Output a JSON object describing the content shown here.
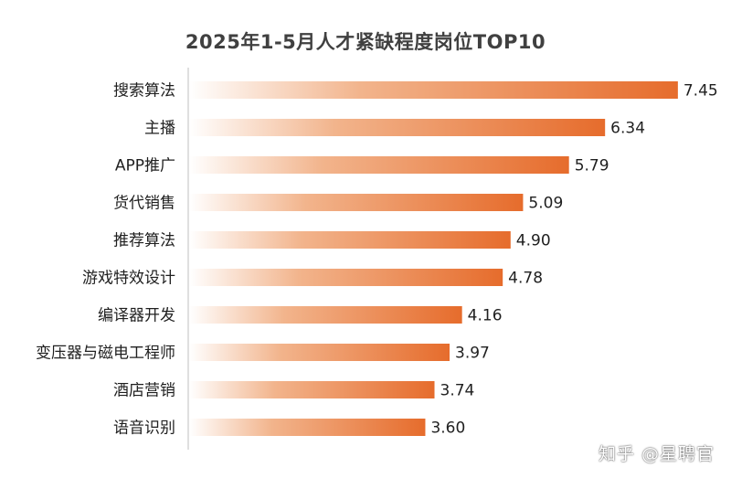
{
  "colors": {
    "bar_start": "#ffffff",
    "bar_mid": "#f2b48c",
    "bar_end": "#e66c2c",
    "axis": "#bfbfbf",
    "label_text": "#1f1f1f",
    "title_text": "#404040"
  },
  "watermark": "知乎 @星聘官",
  "chart_data": {
    "type": "bar",
    "orientation": "horizontal",
    "title": "2025年1-5月人才紧缺程度岗位TOP10",
    "xlabel": "",
    "ylabel": "",
    "xlim": [
      0,
      7.8
    ],
    "grid": false,
    "legend": "none",
    "categories": [
      "搜索算法",
      "主播",
      "APP推广",
      "货代销售",
      "推荐算法",
      "游戏特效设计",
      "编译器开发",
      "变压器与磁电工程师",
      "酒店营销",
      "语音识别"
    ],
    "values": [
      7.45,
      6.34,
      5.79,
      5.09,
      4.9,
      4.78,
      4.16,
      3.97,
      3.74,
      3.6
    ],
    "value_labels": [
      "7.45",
      "6.34",
      "5.79",
      "5.09",
      "4.90",
      "4.78",
      "4.16",
      "3.97",
      "3.74",
      "3.60"
    ]
  }
}
